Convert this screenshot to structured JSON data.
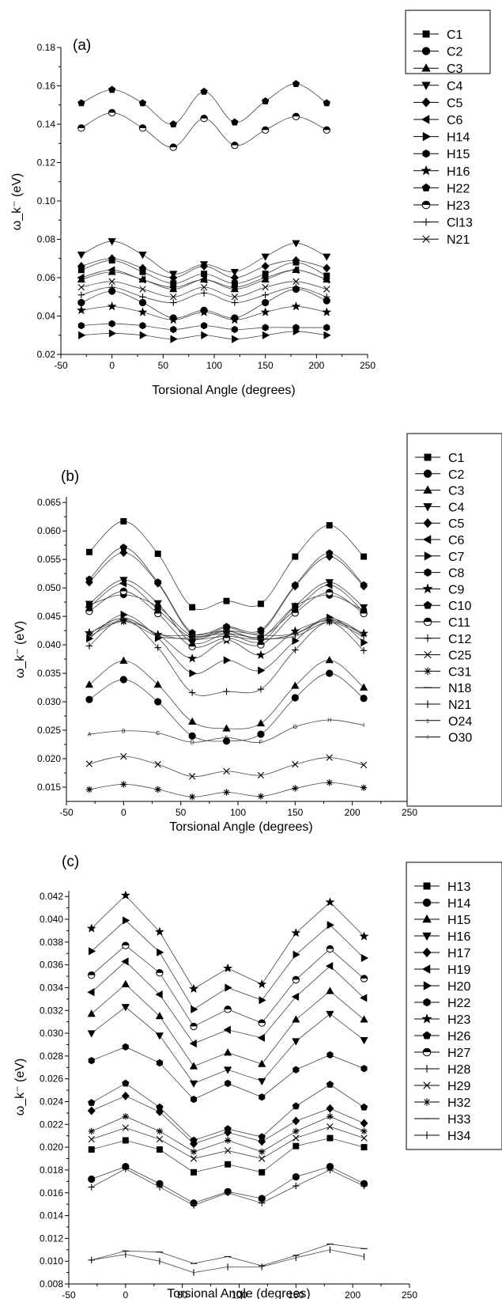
{
  "chart_data": [
    {
      "type": "line",
      "panel_label": "(a)",
      "xlabel": "Torsional Angle (degrees)",
      "ylabel": "ω_k⁻ (eV)",
      "xlim": [
        -50,
        250
      ],
      "ylim": [
        0.02,
        0.18
      ],
      "x_ticks": [
        -50,
        0,
        50,
        100,
        150,
        200,
        250
      ],
      "y_ticks": [
        0.02,
        0.04,
        0.06,
        0.08,
        0.1,
        0.12,
        0.14,
        0.16,
        0.18
      ],
      "y_tick_labels": [
        "0.02",
        "0.04",
        "0.06",
        "0.08",
        "0.10",
        "0.12",
        "0.14",
        "0.16",
        "0.18"
      ],
      "x": [
        -30,
        0,
        30,
        60,
        90,
        120,
        150,
        180,
        210
      ],
      "legend_position": "right",
      "series": [
        {
          "name": "C1",
          "marker": "square",
          "values": [
            0.064,
            0.069,
            0.063,
            0.057,
            0.062,
            0.057,
            0.062,
            0.068,
            0.061
          ]
        },
        {
          "name": "C2",
          "marker": "circle",
          "values": [
            0.047,
            0.053,
            0.047,
            0.039,
            0.043,
            0.039,
            0.047,
            0.054,
            0.048
          ]
        },
        {
          "name": "C3",
          "marker": "triangle-up",
          "values": [
            0.059,
            0.063,
            0.059,
            0.054,
            0.059,
            0.054,
            0.059,
            0.064,
            0.059
          ]
        },
        {
          "name": "C4",
          "marker": "triangle-down",
          "values": [
            0.072,
            0.079,
            0.072,
            0.062,
            0.067,
            0.063,
            0.071,
            0.078,
            0.071
          ]
        },
        {
          "name": "C5",
          "marker": "diamond",
          "values": [
            0.066,
            0.07,
            0.065,
            0.06,
            0.066,
            0.06,
            0.066,
            0.069,
            0.065
          ]
        },
        {
          "name": "C6",
          "marker": "triangle-left",
          "values": [
            0.06,
            0.064,
            0.059,
            0.055,
            0.059,
            0.055,
            0.06,
            0.064,
            0.059
          ]
        },
        {
          "name": "H14",
          "marker": "triangle-right",
          "values": [
            0.03,
            0.031,
            0.03,
            0.028,
            0.03,
            0.028,
            0.03,
            0.032,
            0.03
          ]
        },
        {
          "name": "H15",
          "marker": "hexagon",
          "values": [
            0.035,
            0.036,
            0.035,
            0.033,
            0.035,
            0.033,
            0.034,
            0.034,
            0.034
          ]
        },
        {
          "name": "H16",
          "marker": "star",
          "values": [
            0.043,
            0.045,
            0.042,
            0.038,
            0.042,
            0.038,
            0.042,
            0.045,
            0.042
          ]
        },
        {
          "name": "H22",
          "marker": "pentagon",
          "values": [
            0.151,
            0.158,
            0.151,
            0.14,
            0.157,
            0.141,
            0.152,
            0.161,
            0.151
          ]
        },
        {
          "name": "H23",
          "marker": "half-circle",
          "values": [
            0.138,
            0.146,
            0.138,
            0.128,
            0.143,
            0.129,
            0.137,
            0.144,
            0.137
          ]
        },
        {
          "name": "Cl13",
          "marker": "plus",
          "values": [
            0.051,
            0.055,
            0.05,
            0.047,
            0.052,
            0.047,
            0.051,
            0.055,
            0.05
          ]
        },
        {
          "name": "N21",
          "marker": "cross",
          "values": [
            0.055,
            0.058,
            0.054,
            0.05,
            0.055,
            0.05,
            0.055,
            0.058,
            0.054
          ]
        }
      ]
    },
    {
      "type": "line",
      "panel_label": "(b)",
      "xlabel": "Torsional Angle (degrees)",
      "ylabel": "ω_k⁻ (eV)",
      "xlim": [
        -50,
        250
      ],
      "ylim": [
        0.0125,
        0.066
      ],
      "x_ticks": [
        -50,
        0,
        50,
        100,
        150,
        200,
        250
      ],
      "y_ticks": [
        0.015,
        0.02,
        0.025,
        0.03,
        0.035,
        0.04,
        0.045,
        0.05,
        0.055,
        0.06,
        0.065
      ],
      "y_tick_labels": [
        "0.015",
        "0.020",
        "0.025",
        "0.030",
        "0.035",
        "0.040",
        "0.045",
        "0.050",
        "0.055",
        "0.060",
        "0.065"
      ],
      "x": [
        -30,
        0,
        30,
        60,
        90,
        120,
        150,
        180,
        210
      ],
      "legend_position": "right",
      "series": [
        {
          "name": "C1",
          "marker": "square",
          "values": [
            0.0563,
            0.0617,
            0.056,
            0.0466,
            0.0477,
            0.0472,
            0.0555,
            0.061,
            0.0555
          ]
        },
        {
          "name": "C2",
          "marker": "circle",
          "values": [
            0.0304,
            0.0339,
            0.03,
            0.024,
            0.0231,
            0.0243,
            0.0307,
            0.035,
            0.0306
          ]
        },
        {
          "name": "C3",
          "marker": "triangle-up",
          "values": [
            0.033,
            0.0372,
            0.033,
            0.0265,
            0.0253,
            0.0262,
            0.0328,
            0.0373,
            0.0325
          ]
        },
        {
          "name": "C4",
          "marker": "triangle-down",
          "values": [
            0.0472,
            0.0514,
            0.0473,
            0.0404,
            0.0419,
            0.0406,
            0.0468,
            0.051,
            0.0466
          ]
        },
        {
          "name": "C5",
          "marker": "diamond",
          "values": [
            0.051,
            0.0562,
            0.0508,
            0.0418,
            0.043,
            0.0423,
            0.0503,
            0.0555,
            0.0503
          ]
        },
        {
          "name": "C6",
          "marker": "triangle-left",
          "values": [
            0.0466,
            0.0508,
            0.0462,
            0.0412,
            0.0424,
            0.0414,
            0.0461,
            0.0505,
            0.0458
          ]
        },
        {
          "name": "C7",
          "marker": "triangle-right",
          "values": [
            0.0411,
            0.0453,
            0.0412,
            0.035,
            0.0373,
            0.0355,
            0.0407,
            0.0448,
            0.0404
          ]
        },
        {
          "name": "C8",
          "marker": "hexagon",
          "values": [
            0.047,
            0.0488,
            0.0467,
            0.0416,
            0.0425,
            0.0413,
            0.0468,
            0.0487,
            0.046
          ]
        },
        {
          "name": "C9",
          "marker": "star",
          "values": [
            0.0421,
            0.0442,
            0.0418,
            0.0376,
            0.0408,
            0.0382,
            0.0424,
            0.0442,
            0.042
          ]
        },
        {
          "name": "C10",
          "marker": "pentagon",
          "values": [
            0.0515,
            0.0571,
            0.051,
            0.0421,
            0.0432,
            0.0426,
            0.0505,
            0.0561,
            0.0505
          ]
        },
        {
          "name": "C11",
          "marker": "half-circle",
          "values": [
            0.0459,
            0.0494,
            0.0455,
            0.0397,
            0.0412,
            0.04,
            0.0456,
            0.0492,
            0.0455
          ]
        },
        {
          "name": "C12",
          "marker": "plus",
          "values": [
            0.0398,
            0.0445,
            0.0395,
            0.0316,
            0.0318,
            0.0322,
            0.0391,
            0.044,
            0.039
          ]
        },
        {
          "name": "C25",
          "marker": "cross",
          "values": [
            0.0191,
            0.0204,
            0.019,
            0.0169,
            0.0178,
            0.0171,
            0.019,
            0.0202,
            0.0189
          ]
        },
        {
          "name": "C31",
          "marker": "asterisk",
          "values": [
            0.0146,
            0.0155,
            0.0146,
            0.0133,
            0.0141,
            0.0134,
            0.0148,
            0.0158,
            0.0149
          ]
        },
        {
          "name": "N18",
          "marker": "dash",
          "values": [
            0.042,
            0.0447,
            0.0419,
            0.0409,
            0.0415,
            0.0409,
            0.0419,
            0.0444,
            0.0417
          ]
        },
        {
          "name": "N21",
          "marker": "vbar",
          "values": [
            0.0415,
            0.0441,
            0.0415,
            0.0412,
            0.042,
            0.0411,
            0.0415,
            0.044,
            0.0414
          ]
        },
        {
          "name": "O24",
          "marker": "digit",
          "values": [
            0.042,
            0.0447,
            0.0419,
            0.0417,
            0.0425,
            0.0417,
            0.042,
            0.0447,
            0.0419
          ]
        },
        {
          "name": "O30",
          "marker": "letter",
          "values": [
            0.0243,
            0.0249,
            0.0245,
            0.0229,
            0.0237,
            0.0229,
            0.0256,
            0.0268,
            0.0259
          ]
        }
      ]
    },
    {
      "type": "line",
      "panel_label": "(c)",
      "xlabel": "Torsional Angle (degrees)",
      "ylabel": "ω_k⁻ (eV)",
      "xlim": [
        -50,
        250
      ],
      "ylim": [
        0.008,
        0.0425
      ],
      "x_ticks": [
        -50,
        0,
        50,
        100,
        150,
        200,
        250
      ],
      "y_ticks": [
        0.008,
        0.01,
        0.012,
        0.014,
        0.016,
        0.018,
        0.02,
        0.022,
        0.024,
        0.026,
        0.028,
        0.03,
        0.032,
        0.034,
        0.036,
        0.038,
        0.04,
        0.042
      ],
      "y_tick_labels": [
        "0.008",
        "0.010",
        "0.012",
        "0.014",
        "0.016",
        "0.018",
        "0.020",
        "0.022",
        "0.024",
        "0.026",
        "0.028",
        "0.030",
        "0.032",
        "0.034",
        "0.036",
        "0.038",
        "0.040",
        "0.042"
      ],
      "x": [
        -30,
        0,
        30,
        60,
        90,
        120,
        150,
        180,
        210
      ],
      "legend_position": "right",
      "series": [
        {
          "name": "H13",
          "marker": "square",
          "values": [
            0.0198,
            0.0206,
            0.0198,
            0.0178,
            0.0185,
            0.0178,
            0.0201,
            0.0208,
            0.02
          ]
        },
        {
          "name": "H14",
          "marker": "circle",
          "values": [
            0.0172,
            0.0183,
            0.0168,
            0.0151,
            0.0161,
            0.0155,
            0.0174,
            0.0183,
            0.0168
          ]
        },
        {
          "name": "H15",
          "marker": "triangle-up",
          "values": [
            0.0317,
            0.0343,
            0.0315,
            0.0271,
            0.0283,
            0.0273,
            0.0312,
            0.0337,
            0.0312
          ]
        },
        {
          "name": "H16",
          "marker": "triangle-down",
          "values": [
            0.03,
            0.0323,
            0.0298,
            0.0256,
            0.0268,
            0.0258,
            0.0293,
            0.0317,
            0.0294
          ]
        },
        {
          "name": "H17",
          "marker": "diamond",
          "values": [
            0.0232,
            0.0245,
            0.0231,
            0.0203,
            0.0213,
            0.0205,
            0.0223,
            0.0234,
            0.0221
          ]
        },
        {
          "name": "H19",
          "marker": "triangle-left",
          "values": [
            0.0336,
            0.0363,
            0.0334,
            0.0291,
            0.0303,
            0.0296,
            0.0332,
            0.0359,
            0.0331
          ]
        },
        {
          "name": "H20",
          "marker": "triangle-right",
          "values": [
            0.0372,
            0.0399,
            0.0371,
            0.0321,
            0.034,
            0.0329,
            0.0369,
            0.0395,
            0.0366
          ]
        },
        {
          "name": "H22",
          "marker": "hexagon",
          "values": [
            0.0276,
            0.0288,
            0.0274,
            0.0242,
            0.0256,
            0.0244,
            0.0268,
            0.0281,
            0.0269
          ]
        },
        {
          "name": "H23",
          "marker": "star",
          "values": [
            0.0392,
            0.0421,
            0.0389,
            0.0339,
            0.0357,
            0.0343,
            0.0388,
            0.0415,
            0.0385
          ]
        },
        {
          "name": "H26",
          "marker": "pentagon",
          "values": [
            0.0239,
            0.0256,
            0.0235,
            0.0206,
            0.0216,
            0.0209,
            0.0236,
            0.0255,
            0.0235
          ]
        },
        {
          "name": "H27",
          "marker": "half-circle",
          "values": [
            0.0351,
            0.0377,
            0.0353,
            0.0306,
            0.0321,
            0.0309,
            0.0347,
            0.0374,
            0.0348
          ]
        },
        {
          "name": "H28",
          "marker": "plus",
          "values": [
            0.0165,
            0.0181,
            0.0165,
            0.0149,
            0.016,
            0.0151,
            0.0166,
            0.018,
            0.0166
          ]
        },
        {
          "name": "H29",
          "marker": "cross",
          "values": [
            0.0207,
            0.0217,
            0.0207,
            0.019,
            0.0197,
            0.019,
            0.0208,
            0.0218,
            0.0208
          ]
        },
        {
          "name": "H32",
          "marker": "asterisk",
          "values": [
            0.0214,
            0.0227,
            0.0214,
            0.0196,
            0.0206,
            0.0196,
            0.0214,
            0.0227,
            0.0214
          ]
        },
        {
          "name": "H33",
          "marker": "dash",
          "values": [
            0.0101,
            0.0109,
            0.0108,
            0.0098,
            0.0104,
            0.0096,
            0.0105,
            0.0115,
            0.0111
          ]
        },
        {
          "name": "H34",
          "marker": "vbar",
          "values": [
            0.0101,
            0.0106,
            0.01,
            0.009,
            0.0095,
            0.0095,
            0.0103,
            0.011,
            0.0104
          ]
        }
      ]
    }
  ]
}
